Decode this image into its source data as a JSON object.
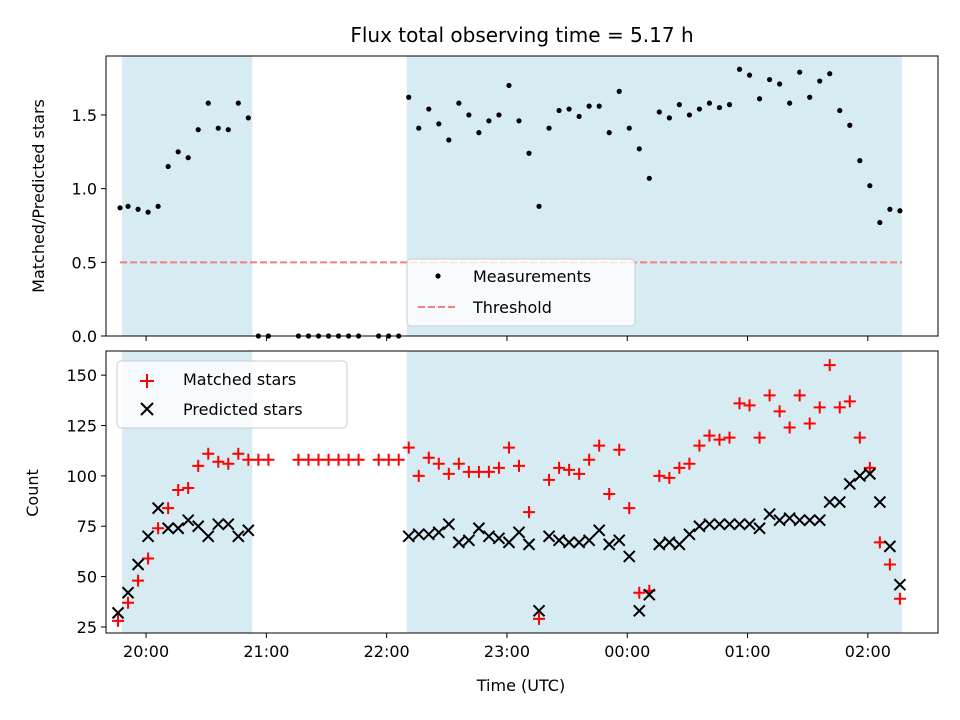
{
  "figure": {
    "title": "Flux total observing time = 5.17 h"
  },
  "chart_data": [
    {
      "type": "scatter",
      "ylabel": "Matched/Predicted stars",
      "xlabel": "",
      "xlim": [
        "19:40",
        "02:35"
      ],
      "ylim": [
        0,
        1.9
      ],
      "yticks": [
        0.0,
        0.5,
        1.0,
        1.5
      ],
      "ytick_labels": [
        "0.0",
        "0.5",
        "1.0",
        "1.5"
      ],
      "grid": false,
      "legend_placement": "bottom-center",
      "shaded_intervals": [
        [
          "19:48",
          "20:53"
        ],
        [
          "22:10",
          "02:17"
        ]
      ],
      "threshold": 0.5,
      "series": [
        {
          "name": "Measurements",
          "marker": "dot",
          "color": "#000000",
          "x": [
            "19:47",
            "19:51",
            "19:56",
            "20:01",
            "20:06",
            "20:11",
            "20:16",
            "20:21",
            "20:26",
            "20:31",
            "20:36",
            "20:41",
            "20:46",
            "20:51",
            "20:56",
            "21:01",
            "21:16",
            "21:21",
            "21:26",
            "21:31",
            "21:36",
            "21:41",
            "21:46",
            "21:56",
            "22:01",
            "22:06",
            "22:11",
            "22:16",
            "22:21",
            "22:26",
            "22:31",
            "22:36",
            "22:41",
            "22:46",
            "22:51",
            "22:56",
            "23:01",
            "23:06",
            "23:11",
            "23:16",
            "23:21",
            "23:26",
            "23:31",
            "23:36",
            "23:41",
            "23:46",
            "23:51",
            "23:56",
            "00:01",
            "00:06",
            "00:11",
            "00:16",
            "00:21",
            "00:26",
            "00:31",
            "00:36",
            "00:41",
            "00:46",
            "00:51",
            "00:56",
            "01:01",
            "01:06",
            "01:11",
            "01:16",
            "01:21",
            "01:26",
            "01:31",
            "01:36",
            "01:41",
            "01:46",
            "01:51",
            "01:56",
            "02:01",
            "02:06",
            "02:11",
            "02:16"
          ],
          "y": [
            0.87,
            0.88,
            0.86,
            0.84,
            0.88,
            1.15,
            1.25,
            1.21,
            1.4,
            1.58,
            1.41,
            1.4,
            1.58,
            1.48,
            0.0,
            0.0,
            0.0,
            0.0,
            0.0,
            0.0,
            0.0,
            0.0,
            0.0,
            0.0,
            0.0,
            0.0,
            1.62,
            1.41,
            1.54,
            1.44,
            1.33,
            1.58,
            1.5,
            1.38,
            1.46,
            1.5,
            1.7,
            1.46,
            1.24,
            0.88,
            1.41,
            1.53,
            1.54,
            1.49,
            1.56,
            1.56,
            1.38,
            1.66,
            1.41,
            1.27,
            1.07,
            1.52,
            1.48,
            1.57,
            1.5,
            1.54,
            1.58,
            1.55,
            1.57,
            1.81,
            1.77,
            1.61,
            1.74,
            1.71,
            1.58,
            1.79,
            1.62,
            1.73,
            1.78,
            1.53,
            1.43,
            1.19,
            1.02,
            0.77,
            0.86,
            0.85
          ]
        },
        {
          "name": "Threshold",
          "marker": "dashed-line",
          "color": "#f08080",
          "x": [
            "19:47",
            "02:17"
          ],
          "y": [
            0.5,
            0.5
          ]
        }
      ]
    },
    {
      "type": "scatter",
      "ylabel": "Count",
      "xlabel": "Time (UTC)",
      "xlim": [
        "19:40",
        "02:35"
      ],
      "ylim": [
        22,
        162
      ],
      "yticks": [
        25,
        50,
        75,
        100,
        125,
        150
      ],
      "ytick_labels": [
        "25",
        "50",
        "75",
        "100",
        "125",
        "150"
      ],
      "xticks": [
        "20:00",
        "21:00",
        "22:00",
        "23:00",
        "00:00",
        "01:00",
        "02:00"
      ],
      "grid": false,
      "legend_placement": "upper-left",
      "shaded_intervals": [
        [
          "19:48",
          "20:53"
        ],
        [
          "22:10",
          "02:17"
        ]
      ],
      "series": [
        {
          "name": "Matched stars",
          "marker": "plus",
          "color": "#ff0000",
          "x": [
            "19:46",
            "19:51",
            "19:56",
            "20:01",
            "20:06",
            "20:11",
            "20:16",
            "20:21",
            "20:26",
            "20:31",
            "20:36",
            "20:41",
            "20:46",
            "20:51",
            "20:56",
            "21:01",
            "21:16",
            "21:21",
            "21:26",
            "21:31",
            "21:36",
            "21:41",
            "21:46",
            "21:56",
            "22:01",
            "22:06",
            "22:11",
            "22:16",
            "22:21",
            "22:26",
            "22:31",
            "22:36",
            "22:41",
            "22:46",
            "22:51",
            "22:56",
            "23:01",
            "23:06",
            "23:11",
            "23:16",
            "23:21",
            "23:26",
            "23:31",
            "23:36",
            "23:41",
            "23:46",
            "23:51",
            "23:56",
            "00:01",
            "00:06",
            "00:11",
            "00:16",
            "00:21",
            "00:26",
            "00:31",
            "00:36",
            "00:41",
            "00:46",
            "00:51",
            "00:56",
            "01:01",
            "01:06",
            "01:11",
            "01:16",
            "01:21",
            "01:26",
            "01:31",
            "01:36",
            "01:41",
            "01:46",
            "01:51",
            "01:56",
            "02:01",
            "02:06",
            "02:11",
            "02:16"
          ],
          "y": [
            28,
            37,
            48,
            59,
            74,
            84,
            93,
            94,
            105,
            111,
            107,
            106,
            111,
            108,
            108,
            108,
            108,
            108,
            108,
            108,
            108,
            108,
            108,
            108,
            108,
            108,
            114,
            100,
            109,
            106,
            101,
            106,
            102,
            102,
            102,
            104,
            114,
            105,
            82,
            29,
            98,
            104,
            103,
            101,
            108,
            115,
            91,
            113,
            84,
            42,
            43,
            100,
            99,
            104,
            106,
            115,
            120,
            118,
            119,
            136,
            135,
            119,
            140,
            132,
            124,
            140,
            126,
            134,
            155,
            134,
            137,
            119,
            104,
            67,
            56,
            39
          ]
        },
        {
          "name": "Predicted stars",
          "marker": "x",
          "color": "#000000",
          "x": [
            "19:46",
            "19:51",
            "19:56",
            "20:01",
            "20:06",
            "20:11",
            "20:16",
            "20:21",
            "20:26",
            "20:31",
            "20:36",
            "20:41",
            "20:46",
            "20:51",
            "22:11",
            "22:16",
            "22:21",
            "22:26",
            "22:31",
            "22:36",
            "22:41",
            "22:46",
            "22:51",
            "22:56",
            "23:01",
            "23:06",
            "23:11",
            "23:16",
            "23:21",
            "23:26",
            "23:31",
            "23:36",
            "23:41",
            "23:46",
            "23:51",
            "23:56",
            "00:01",
            "00:06",
            "00:11",
            "00:16",
            "00:21",
            "00:26",
            "00:31",
            "00:36",
            "00:41",
            "00:46",
            "00:51",
            "00:56",
            "01:01",
            "01:06",
            "01:11",
            "01:16",
            "01:21",
            "01:26",
            "01:31",
            "01:36",
            "01:41",
            "01:46",
            "01:51",
            "01:56",
            "02:01",
            "02:06",
            "02:11",
            "02:16"
          ],
          "y": [
            32,
            42,
            56,
            70,
            84,
            74,
            74,
            78,
            75,
            70,
            76,
            76,
            70,
            73,
            70,
            71,
            71,
            72,
            76,
            67,
            68,
            74,
            70,
            69,
            67,
            72,
            66,
            33,
            70,
            68,
            67,
            67,
            68,
            73,
            66,
            68,
            60,
            33,
            41,
            66,
            67,
            66,
            71,
            75,
            76,
            76,
            76,
            76,
            76,
            74,
            81,
            78,
            79,
            78,
            78,
            78,
            87,
            87,
            96,
            100,
            101,
            87,
            65,
            46
          ]
        }
      ]
    }
  ]
}
